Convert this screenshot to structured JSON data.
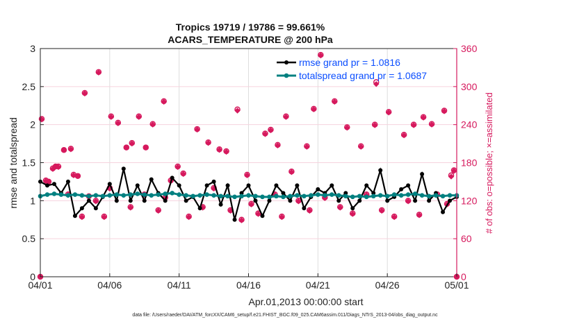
{
  "chart_data": {
    "type": "line",
    "title": [
      "Tropics 19719 / 19786 = 99.661%",
      "ACARS_TEMPERATURE @ 200 hPa"
    ],
    "xlabel": "Apr.01,2013 00:00:00 start",
    "ylabel": "rmse and totalspread",
    "ylabel_right": "# of obs: o=possible; ×=assimilated",
    "footer": "data file: /Users/raeder/DAI/ATM_forcXX/CAM6_setup/f.e21.FHIST_BGC.f09_025.CAM6assim.011/Diags_NTrS_2013-04/obs_diag_output.nc",
    "xlim_days": [
      0,
      30
    ],
    "xticks": [
      {
        "day": 0,
        "label": "04/01"
      },
      {
        "day": 5,
        "label": "04/06"
      },
      {
        "day": 10,
        "label": "04/11"
      },
      {
        "day": 15,
        "label": "04/16"
      },
      {
        "day": 20,
        "label": "04/21"
      },
      {
        "day": 25,
        "label": "04/26"
      },
      {
        "day": 30,
        "label": "05/01"
      }
    ],
    "ylim": [
      0,
      3
    ],
    "yticks": [
      "0",
      "0.5",
      "1",
      "1.5",
      "2",
      "2.5",
      "3"
    ],
    "ylim_right": [
      0,
      360
    ],
    "yticks_right": [
      "0",
      "60",
      "120",
      "180",
      "240",
      "300",
      "360"
    ],
    "grid": true,
    "legend_position": "top-right",
    "colors": {
      "rmse": "#000000",
      "spread": "#008080",
      "obs": "#d6195d",
      "legend_text": "#0a4dff"
    },
    "series": [
      {
        "name": "rmse grand pr = 1.0816",
        "key": "rmse",
        "step_days": 0.5,
        "values": [
          1.25,
          1.2,
          1.22,
          1.1,
          1.25,
          0.8,
          0.9,
          1.0,
          0.9,
          1.05,
          1.22,
          1.0,
          1.42,
          1.0,
          1.2,
          1.0,
          1.28,
          1.1,
          1.0,
          1.3,
          1.2,
          1.0,
          1.05,
          0.9,
          1.2,
          1.25,
          0.95,
          1.2,
          0.75,
          1.1,
          1.2,
          1.0,
          0.8,
          1.0,
          1.2,
          1.1,
          1.0,
          1.2,
          0.9,
          1.05,
          1.15,
          1.1,
          1.2,
          1.0,
          1.1,
          0.9,
          1.0,
          1.2,
          1.1,
          1.4,
          1.0,
          1.05,
          1.15,
          1.2,
          1.0,
          1.35,
          1.0,
          1.1,
          0.85,
          1.0,
          1.05
        ]
      },
      {
        "name": "totalspread grand pr = 1.0687",
        "key": "spread",
        "step_days": 0.5,
        "values": [
          1.06,
          1.08,
          1.09,
          1.08,
          1.07,
          1.08,
          1.07,
          1.06,
          1.07,
          1.06,
          1.07,
          1.08,
          1.07,
          1.08,
          1.09,
          1.08,
          1.07,
          1.08,
          1.09,
          1.1,
          1.08,
          1.07,
          1.06,
          1.07,
          1.08,
          1.07,
          1.06,
          1.06,
          1.05,
          1.06,
          1.07,
          1.06,
          1.05,
          1.05,
          1.06,
          1.05,
          1.06,
          1.07,
          1.06,
          1.07,
          1.08,
          1.07,
          1.08,
          1.07,
          1.06,
          1.05,
          1.06,
          1.05,
          1.06,
          1.07,
          1.06,
          1.08,
          1.07,
          1.08,
          1.09,
          1.07,
          1.06,
          1.07,
          1.06,
          1.07,
          1.07
        ]
      }
    ],
    "obs_counts": {
      "days": [
        0,
        0.1,
        0.4,
        0.6,
        0.9,
        1.1,
        1.3,
        1.7,
        2.2,
        2.4,
        2.7,
        3.2,
        3.5,
        4.2,
        4.6,
        5.1,
        5.6,
        6.2,
        6.6,
        7.1,
        7.6,
        8.1,
        8.9,
        9.4,
        9.9,
        10.3,
        11.3,
        12.1,
        12.9,
        13.4,
        14.2,
        14.9,
        16.2,
        16.6,
        17.1,
        17.7,
        18.1,
        19.2,
        19.7,
        20.2,
        21.2,
        22.1,
        23.1,
        24.1,
        24.2,
        25.1,
        26.2,
        26.9,
        27.6,
        28.2,
        29.1,
        29.8,
        30,
        2.0,
        3.0,
        4.0,
        5.0,
        6.5,
        7.5,
        8.5,
        9.0,
        10.7,
        11.7,
        12.5,
        13.7,
        14.5,
        15.2,
        15.7,
        16.9,
        17.4,
        18.6,
        19.4,
        20.5,
        21.6,
        22.5,
        23.5,
        24.6,
        25.5,
        26.5,
        27.3,
        28.6,
        29.3,
        29.6
      ],
      "possible": [
        0,
        249,
        152,
        150,
        171,
        174,
        174,
        200,
        202,
        161,
        159,
        290,
        127,
        323,
        95,
        253,
        243,
        204,
        211,
        253,
        204,
        241,
        277,
        152,
        174,
        163,
        233,
        212,
        201,
        198,
        264,
        161,
        226,
        232,
        208,
        253,
        166,
        206,
        265,
        350,
        277,
        236,
        206,
        240,
        307,
        260,
        224,
        240,
        252,
        241,
        262,
        168,
        0,
        130,
        95,
        120,
        140,
        110,
        130,
        105,
        125,
        95,
        110,
        140,
        105,
        90,
        115,
        100,
        130,
        95,
        120,
        105,
        125,
        110,
        100,
        130,
        105,
        95,
        120,
        98,
        130,
        115,
        160
      ],
      "assimilated": [
        0,
        248,
        151,
        150,
        170,
        174,
        173,
        200,
        201,
        160,
        159,
        289,
        126,
        322,
        94,
        252,
        242,
        204,
        210,
        252,
        204,
        240,
        276,
        151,
        173,
        162,
        232,
        211,
        200,
        197,
        262,
        160,
        225,
        231,
        207,
        252,
        165,
        205,
        264,
        349,
        276,
        235,
        205,
        239,
        304,
        259,
        223,
        239,
        251,
        240,
        261,
        167,
        0,
        129,
        94,
        119,
        139,
        109,
        129,
        104,
        124,
        94,
        109,
        139,
        104,
        89,
        114,
        99,
        129,
        94,
        119,
        104,
        124,
        109,
        99,
        129,
        104,
        94,
        119,
        97,
        129,
        114,
        158
      ]
    }
  }
}
